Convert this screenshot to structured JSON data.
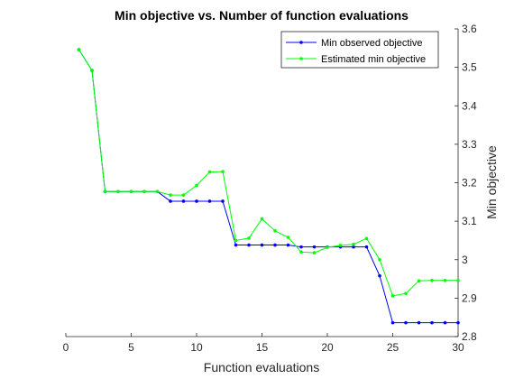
{
  "chart_data": {
    "type": "line",
    "title": "Min objective vs. Number of function evaluations",
    "xlabel": "Function evaluations",
    "ylabel": "Min objective",
    "xlim": [
      0,
      30
    ],
    "ylim": [
      2.8,
      3.6
    ],
    "xticks": [
      "0",
      "5",
      "10",
      "15",
      "20",
      "25",
      "30"
    ],
    "yticks": [
      "2.8",
      "2.9",
      "3",
      "3.1",
      "3.2",
      "3.3",
      "3.4",
      "3.5",
      "3.6"
    ],
    "y_axis_side": "right",
    "grid": false,
    "legend_position": "top-right",
    "x": [
      1,
      2,
      3,
      4,
      5,
      6,
      7,
      8,
      9,
      10,
      11,
      12,
      13,
      14,
      15,
      16,
      17,
      18,
      19,
      20,
      21,
      22,
      23,
      24,
      25,
      26,
      27,
      28,
      29,
      30
    ],
    "series": [
      {
        "name": "Min observed objective",
        "color": "#0000ff",
        "values": [
          3.546,
          3.492,
          3.177,
          3.177,
          3.177,
          3.177,
          3.177,
          3.152,
          3.152,
          3.152,
          3.152,
          3.152,
          3.038,
          3.038,
          3.038,
          3.038,
          3.038,
          3.033,
          3.033,
          3.033,
          3.033,
          3.033,
          3.033,
          2.958,
          2.836,
          2.836,
          2.836,
          2.836,
          2.836,
          2.836
        ]
      },
      {
        "name": "Estimated min objective",
        "color": "#00ff00",
        "values": [
          3.546,
          3.492,
          3.177,
          3.177,
          3.177,
          3.177,
          3.177,
          3.168,
          3.168,
          3.193,
          3.228,
          3.229,
          3.05,
          3.056,
          3.106,
          3.075,
          3.058,
          3.02,
          3.018,
          3.032,
          3.037,
          3.04,
          3.055,
          3.0,
          2.906,
          2.912,
          2.945,
          2.946,
          2.946,
          2.946
        ]
      }
    ]
  }
}
